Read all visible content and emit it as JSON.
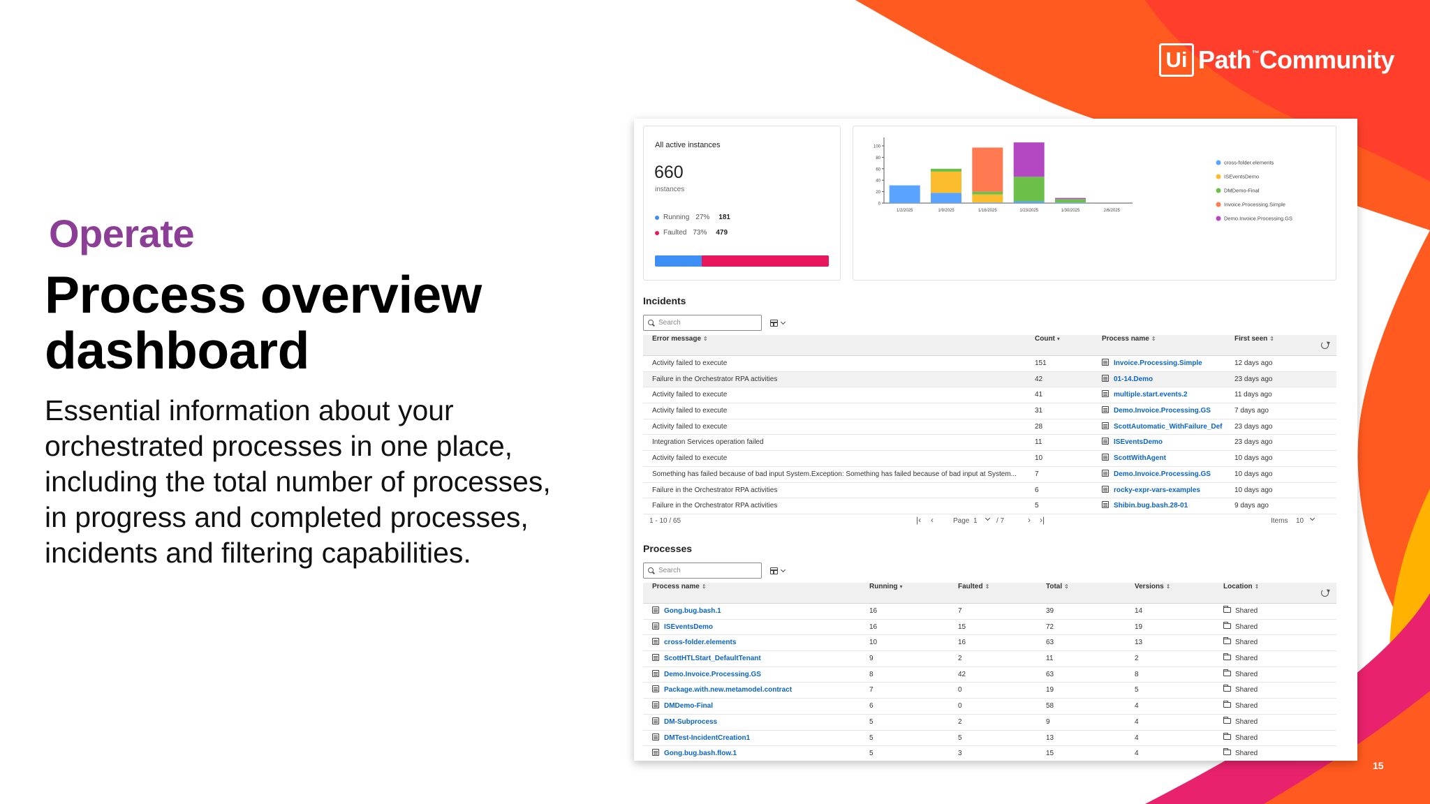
{
  "brand": {
    "logo_box": "Ui",
    "logo_text": "Path",
    "logo_tm": "™",
    "logo_suffix": "Community"
  },
  "slide": {
    "eyebrow": "Operate",
    "headline": "Process overview dashboard",
    "body": "Essential information about your orchestrated processes in one place, including the total number of processes, in progress and completed processes, incidents and filtering capabilities.",
    "page_number": "15"
  },
  "colors": {
    "accent_orange": "#ff5a1f",
    "accent_red": "#ff3b2f",
    "accent_pink": "#e8226c",
    "accent_yellow": "#ffb300",
    "eyebrow_purple": "#8c3e96",
    "running_blue": "#3d8ef5",
    "faulted_pink": "#e8175d"
  },
  "summary": {
    "title": "All active instances",
    "count": "660",
    "unit": "instances",
    "stats": [
      {
        "label": "Running",
        "pct": "27%",
        "num": "181",
        "color": "#3d8ef5",
        "fraction": 0.27
      },
      {
        "label": "Faulted",
        "pct": "73%",
        "num": "479",
        "color": "#e8175d",
        "fraction": 0.73
      }
    ]
  },
  "chart_data": {
    "type": "bar",
    "stacked": true,
    "categories": [
      "1/2/2025",
      "1/9/2025",
      "1/16/2025",
      "1/23/2025",
      "1/30/2025",
      "2/6/2025"
    ],
    "series": [
      {
        "name": "cross-folder.elements",
        "color": "#5aa4ff",
        "values": [
          31,
          18,
          1,
          3,
          1,
          0
        ]
      },
      {
        "name": "ISEventsDemo",
        "color": "#fbbc2d",
        "values": [
          0,
          37,
          14,
          0,
          0,
          0
        ]
      },
      {
        "name": "DMDemo-Final",
        "color": "#6cc04a",
        "values": [
          0,
          5,
          5,
          43,
          6,
          0
        ]
      },
      {
        "name": "Invoice.Processing.Simple",
        "color": "#ff7a50",
        "values": [
          0,
          0,
          77,
          0,
          0,
          0
        ]
      },
      {
        "name": "Demo.Invoice.Processing.GS",
        "color": "#b447c2",
        "values": [
          0,
          0,
          0,
          60,
          2,
          0
        ]
      }
    ],
    "yticks": [
      "0",
      "20",
      "40",
      "60",
      "80",
      "100"
    ],
    "ylim": [
      0,
      110
    ],
    "grid": false,
    "legend": "right"
  },
  "incidents": {
    "title": "Incidents",
    "search_placeholder": "Search",
    "columns": {
      "error": "Error message",
      "count": "Count",
      "process": "Process name",
      "first_seen": "First seen"
    },
    "sort_icon": "⇕",
    "sort_desc_icon": "▾",
    "rows": [
      {
        "error": "Activity failed to execute",
        "count": "151",
        "process": "Invoice.Processing.Simple",
        "first_seen": "12 days ago"
      },
      {
        "error": "Failure in the Orchestrator RPA activities",
        "count": "42",
        "process": "01-14.Demo",
        "first_seen": "23 days ago"
      },
      {
        "error": "Activity failed to execute",
        "count": "41",
        "process": "multiple.start.events.2",
        "first_seen": "11 days ago"
      },
      {
        "error": "Activity failed to execute",
        "count": "31",
        "process": "Demo.Invoice.Processing.GS",
        "first_seen": "7 days ago"
      },
      {
        "error": "Activity failed to execute",
        "count": "28",
        "process": "ScottAutomatic_WithFailure_Def",
        "first_seen": "23 days ago"
      },
      {
        "error": "Integration Services operation failed",
        "count": "11",
        "process": "ISEventsDemo",
        "first_seen": "23 days ago"
      },
      {
        "error": "Activity failed to execute",
        "count": "10",
        "process": "ScottWithAgent",
        "first_seen": "10 days ago"
      },
      {
        "error": "Something has failed because of bad input System.Exception: Something has failed because of bad input at System...",
        "count": "7",
        "process": "Demo.Invoice.Processing.GS",
        "first_seen": "10 days ago"
      },
      {
        "error": "Failure in the Orchestrator RPA activities",
        "count": "6",
        "process": "rocky-expr-vars-examples",
        "first_seen": "10 days ago"
      },
      {
        "error": "Failure in the Orchestrator RPA activities",
        "count": "5",
        "process": "Shibin.bug.bash.28-01",
        "first_seen": "9 days ago"
      }
    ],
    "pager": {
      "range": "1 - 10 / 65",
      "page_label": "Page",
      "page": "1",
      "of": "/ 7",
      "items_label": "Items",
      "items": "10"
    }
  },
  "processes": {
    "title": "Processes",
    "search_placeholder": "Search",
    "columns": {
      "name": "Process name",
      "running": "Running",
      "faulted": "Faulted",
      "total": "Total",
      "versions": "Versions",
      "location": "Location"
    },
    "rows": [
      {
        "name": "Gong.bug.bash.1",
        "running": "16",
        "faulted": "7",
        "total": "39",
        "versions": "14",
        "location": "Shared"
      },
      {
        "name": "ISEventsDemo",
        "running": "16",
        "faulted": "15",
        "total": "72",
        "versions": "19",
        "location": "Shared"
      },
      {
        "name": "cross-folder.elements",
        "running": "10",
        "faulted": "16",
        "total": "63",
        "versions": "13",
        "location": "Shared"
      },
      {
        "name": "ScottHTLStart_DefaultTenant",
        "running": "9",
        "faulted": "2",
        "total": "11",
        "versions": "2",
        "location": "Shared"
      },
      {
        "name": "Demo.Invoice.Processing.GS",
        "running": "8",
        "faulted": "42",
        "total": "63",
        "versions": "8",
        "location": "Shared"
      },
      {
        "name": "Package.with.new.metamodel.contract",
        "running": "7",
        "faulted": "0",
        "total": "19",
        "versions": "5",
        "location": "Shared"
      },
      {
        "name": "DMDemo-Final",
        "running": "6",
        "faulted": "0",
        "total": "58",
        "versions": "4",
        "location": "Shared"
      },
      {
        "name": "DM-Subprocess",
        "running": "5",
        "faulted": "2",
        "total": "9",
        "versions": "4",
        "location": "Shared"
      },
      {
        "name": "DMTest-IncidentCreation1",
        "running": "5",
        "faulted": "5",
        "total": "13",
        "versions": "4",
        "location": "Shared"
      },
      {
        "name": "Gong.bug.bash.flow.1",
        "running": "5",
        "faulted": "3",
        "total": "15",
        "versions": "4",
        "location": "Shared"
      }
    ]
  },
  "icons": {
    "search": "search-icon",
    "columns": "column-chooser-icon",
    "refresh": "refresh-icon",
    "process": "process-icon",
    "folder": "folder-icon"
  }
}
